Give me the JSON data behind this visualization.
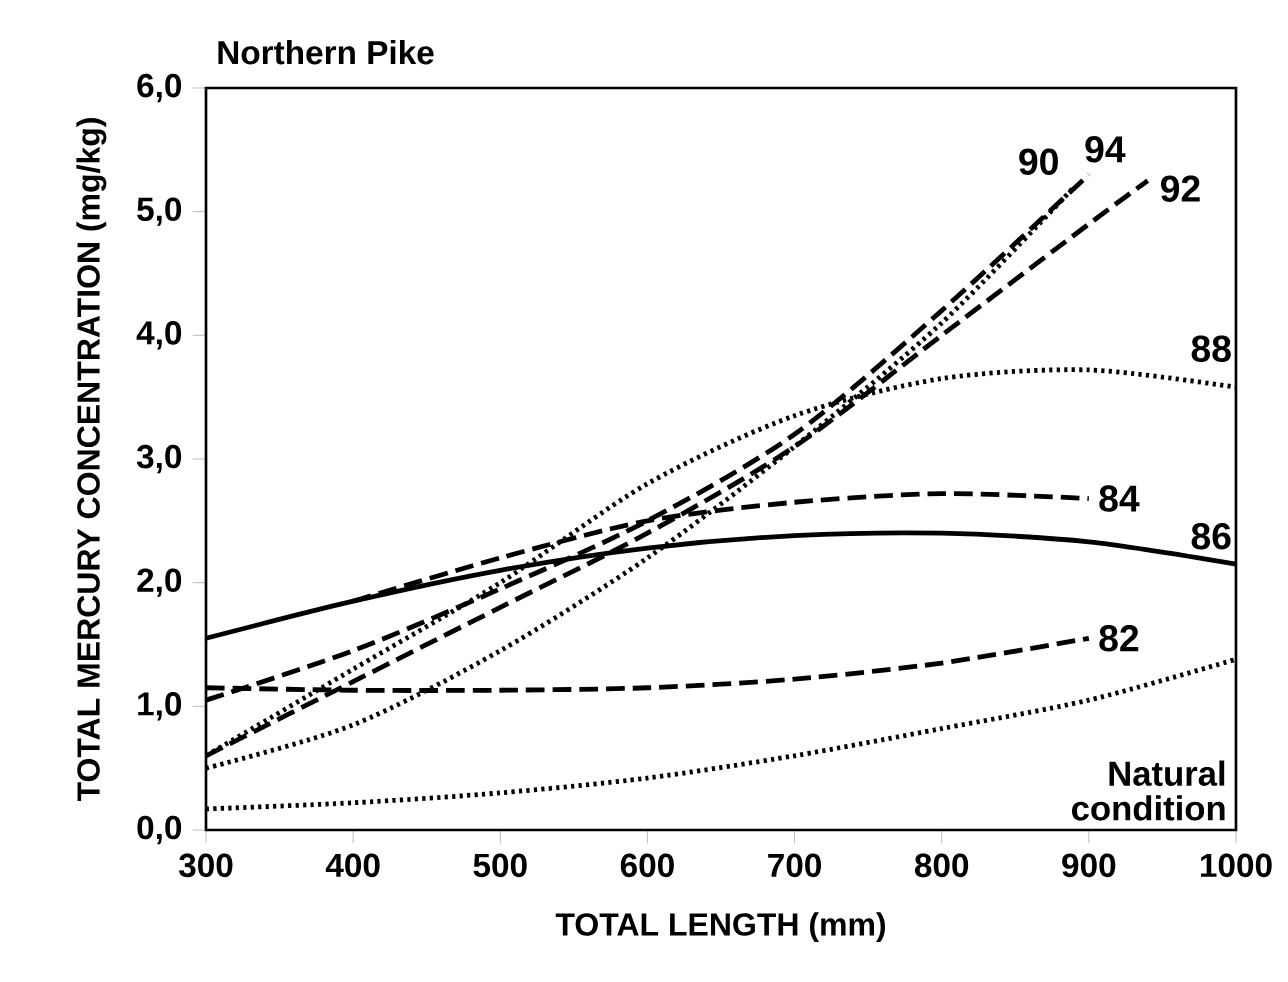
{
  "chart_data": {
    "type": "line",
    "title": "Northern Pike",
    "xlabel": "TOTAL LENGTH (mm)",
    "ylabel": "TOTAL MERCURY CONCENTRATION (mg/kg)",
    "xlim": [
      300,
      1000
    ],
    "ylim": [
      0,
      6
    ],
    "xticks": [
      300,
      400,
      500,
      600,
      700,
      800,
      900,
      1000
    ],
    "yticks": [
      {
        "value": 0,
        "label": "0,0"
      },
      {
        "value": 1,
        "label": "1,0"
      },
      {
        "value": 2,
        "label": "2,0"
      },
      {
        "value": 3,
        "label": "3,0"
      },
      {
        "value": 4,
        "label": "4,0"
      },
      {
        "value": 5,
        "label": "5,0"
      },
      {
        "value": 6,
        "label": "6,0"
      }
    ],
    "grid": false,
    "legend": false,
    "marker": "none",
    "series": [
      {
        "name": "82",
        "color": "#000000",
        "line_style": "dashed",
        "x": [
          300,
          400,
          500,
          600,
          700,
          800,
          900
        ],
        "values": [
          1.15,
          1.13,
          1.13,
          1.15,
          1.22,
          1.35,
          1.55
        ]
      },
      {
        "name": "84",
        "color": "#000000",
        "line_style": "dashed",
        "x": [
          400,
          500,
          600,
          700,
          800,
          900
        ],
        "values": [
          1.85,
          2.2,
          2.5,
          2.65,
          2.72,
          2.68
        ]
      },
      {
        "name": "86",
        "color": "#000000",
        "line_style": "solid",
        "x": [
          300,
          400,
          500,
          600,
          700,
          800,
          900,
          1000
        ],
        "values": [
          1.55,
          1.85,
          2.1,
          2.28,
          2.38,
          2.4,
          2.33,
          2.15
        ]
      },
      {
        "name": "88",
        "color": "#000000",
        "line_style": "dotted",
        "x": [
          300,
          400,
          500,
          600,
          700,
          800,
          900,
          1000
        ],
        "values": [
          0.6,
          1.3,
          2.0,
          2.8,
          3.35,
          3.65,
          3.72,
          3.58
        ]
      },
      {
        "name": "90",
        "color": "#000000",
        "line_style": "dotted",
        "x": [
          300,
          400,
          500,
          600,
          700,
          800,
          890
        ],
        "values": [
          0.5,
          0.85,
          1.45,
          2.2,
          3.1,
          4.1,
          5.2
        ]
      },
      {
        "name": "92",
        "color": "#000000",
        "line_style": "dashed",
        "x": [
          300,
          400,
          500,
          600,
          700,
          800,
          900,
          940
        ],
        "values": [
          0.6,
          1.2,
          1.8,
          2.4,
          3.1,
          4.0,
          4.9,
          5.25
        ]
      },
      {
        "name": "94",
        "color": "#000000",
        "line_style": "dashed",
        "x": [
          300,
          400,
          500,
          600,
          700,
          800,
          900
        ],
        "values": [
          1.05,
          1.45,
          1.95,
          2.5,
          3.2,
          4.2,
          5.3
        ]
      },
      {
        "name": "Natural condition",
        "color": "#000000",
        "line_style": "dotted",
        "x": [
          300,
          400,
          500,
          600,
          700,
          800,
          900,
          1000
        ],
        "values": [
          0.17,
          0.22,
          0.3,
          0.42,
          0.6,
          0.82,
          1.05,
          1.38
        ]
      }
    ]
  }
}
